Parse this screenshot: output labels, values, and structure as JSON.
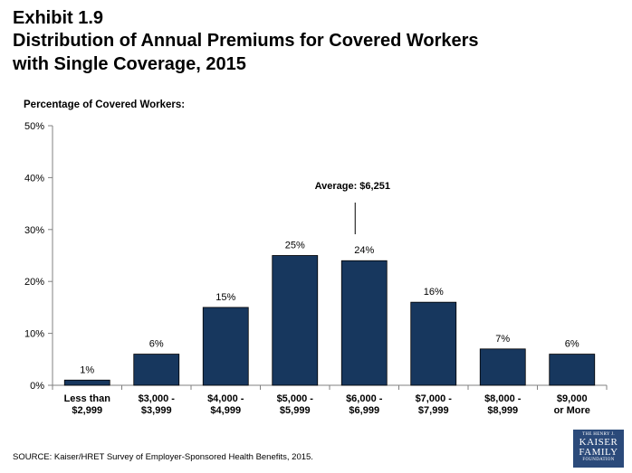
{
  "header": {
    "exhibit": "Exhibit 1.9",
    "title_line1": "Distribution of Annual Premiums for Covered Workers",
    "title_line2": "with Single Coverage, 2015"
  },
  "footer": {
    "source": "SOURCE:  Kaiser/HRET Survey of Employer-Sponsored Health Benefits, 2015."
  },
  "logo": {
    "line1": "THE HENRY J.",
    "line2": "KAISER",
    "line3": "FAMILY",
    "line4": "FOUNDATION"
  },
  "colors": {
    "bar_fill": "#17375e",
    "axis": "#808080",
    "text": "#000000"
  },
  "chart_data": {
    "type": "bar",
    "ylabel": "Percentage of Covered Workers:",
    "xlabel": "",
    "ylim": [
      0,
      50
    ],
    "yticks": [
      {
        "value": 0,
        "label": "0%"
      },
      {
        "value": 10,
        "label": "10%"
      },
      {
        "value": 20,
        "label": "20%"
      },
      {
        "value": 30,
        "label": "30%"
      },
      {
        "value": 40,
        "label": "40%"
      },
      {
        "value": 50,
        "label": "50%"
      }
    ],
    "categories": [
      [
        "Less than",
        "$2,999"
      ],
      [
        "$3,000 -",
        "$3,999"
      ],
      [
        "$4,000 -",
        "$4,999"
      ],
      [
        "$5,000 -",
        "$5,999"
      ],
      [
        "$6,000 -",
        "$6,999"
      ],
      [
        "$7,000 -",
        "$7,999"
      ],
      [
        "$8,000 -",
        "$8,999"
      ],
      [
        "$9,000",
        "or More"
      ]
    ],
    "values": [
      1,
      6,
      15,
      25,
      24,
      16,
      7,
      6
    ],
    "value_labels": [
      "1%",
      "6%",
      "15%",
      "25%",
      "24%",
      "16%",
      "7%",
      "6%"
    ],
    "grid": false,
    "legend": "none",
    "annotation": {
      "text": "Average: $6,251",
      "category_index": 4
    }
  }
}
